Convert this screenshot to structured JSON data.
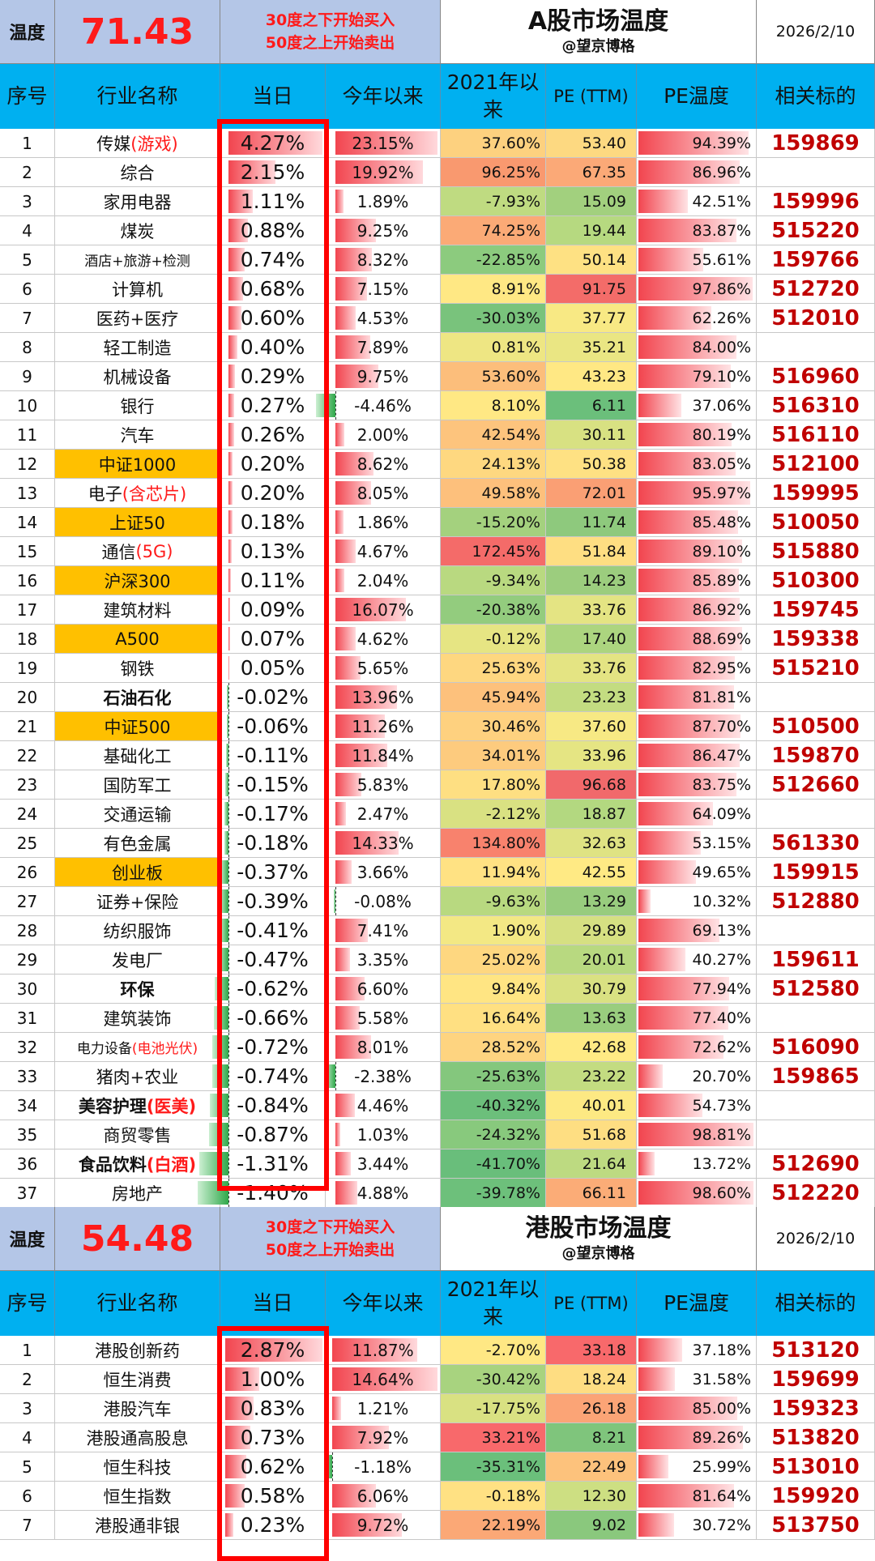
{
  "a_share": {
    "temp_label": "温度",
    "temp_value": "71.43",
    "rule_line1": "30度之下开始买入",
    "rule_line2": "50度之上开始卖出",
    "title": "A股市场温度",
    "author": "@望京博格",
    "date": "2026/2/10",
    "columns": [
      "序号",
      "行业名称",
      "当日",
      "今年以来",
      "2021年以来",
      "PE (TTM)",
      "PE温度",
      "相关标的"
    ],
    "rows": [
      {
        "idx": "1",
        "name": "传媒",
        "note": "(游戏)",
        "day": "4.27%",
        "ytd": "23.15%",
        "since": "37.60%",
        "pe": "53.40",
        "temp": "94.39%",
        "code": "159869",
        "since_color": "#fdd17f",
        "pe_color": "#fdd981"
      },
      {
        "idx": "2",
        "name": "综合",
        "note": "",
        "day": "2.15%",
        "ytd": "19.92%",
        "since": "96.25%",
        "pe": "67.35",
        "temp": "86.96%",
        "code": "",
        "since_color": "#f9996f",
        "pe_color": "#fba977"
      },
      {
        "idx": "3",
        "name": "家用电器",
        "note": "",
        "day": "1.11%",
        "ytd": "1.89%",
        "since": "-7.93%",
        "pe": "15.09",
        "temp": "42.51%",
        "code": "159996",
        "since_color": "#bfdb81",
        "pe_color": "#a2d07e"
      },
      {
        "idx": "4",
        "name": "煤炭",
        "note": "",
        "day": "0.88%",
        "ytd": "9.25%",
        "since": "74.25%",
        "pe": "19.44",
        "temp": "83.87%",
        "code": "515220",
        "since_color": "#fbaa76",
        "pe_color": "#b6d980"
      },
      {
        "idx": "5",
        "name": "酒店+旅游+检测",
        "note": "",
        "day": "0.74%",
        "ytd": "8.32%",
        "since": "-22.85%",
        "pe": "50.14",
        "temp": "55.61%",
        "code": "159766",
        "since_color": "#8ccb7e",
        "pe_color": "#fee183"
      },
      {
        "idx": "6",
        "name": "计算机",
        "note": "",
        "day": "0.68%",
        "ytd": "7.15%",
        "since": "8.91%",
        "pe": "91.75",
        "temp": "97.86%",
        "code": "512720",
        "since_color": "#ffe884",
        "pe_color": "#f36c69"
      },
      {
        "idx": "7",
        "name": "医药+医疗",
        "note": "",
        "day": "0.60%",
        "ytd": "4.53%",
        "since": "-30.03%",
        "pe": "37.77",
        "temp": "62.26%",
        "code": "512010",
        "since_color": "#79c37c",
        "pe_color": "#f8e984"
      },
      {
        "idx": "8",
        "name": "轻工制造",
        "note": "",
        "day": "0.40%",
        "ytd": "7.89%",
        "since": "0.81%",
        "pe": "35.21",
        "temp": "84.00%",
        "code": "",
        "since_color": "#eee683",
        "pe_color": "#eae683"
      },
      {
        "idx": "9",
        "name": "机械设备",
        "note": "",
        "day": "0.29%",
        "ytd": "9.75%",
        "since": "53.60%",
        "pe": "43.23",
        "temp": "79.10%",
        "code": "516960",
        "since_color": "#fcbe7b",
        "pe_color": "#ffe884"
      },
      {
        "idx": "10",
        "name": "银行",
        "note": "",
        "day": "0.27%",
        "ytd": "-4.46%",
        "since": "8.10%",
        "pe": "6.11",
        "temp": "37.06%",
        "code": "516310",
        "since_color": "#ffe884",
        "pe_color": "#6bbf7b"
      },
      {
        "idx": "11",
        "name": "汽车",
        "note": "",
        "day": "0.26%",
        "ytd": "2.00%",
        "since": "42.54%",
        "pe": "30.11",
        "temp": "80.19%",
        "code": "516110",
        "since_color": "#fdc47d",
        "pe_color": "#d8e182"
      },
      {
        "idx": "12",
        "name": "中证1000",
        "note": "",
        "day": "0.20%",
        "ytd": "8.62%",
        "since": "24.13%",
        "pe": "50.38",
        "temp": "83.05%",
        "code": "512100",
        "since_color": "#fed880",
        "pe_color": "#fee183"
      },
      {
        "idx": "13",
        "name": "电子",
        "note": "(含芯片)",
        "day": "0.20%",
        "ytd": "8.05%",
        "since": "49.58%",
        "pe": "72.01",
        "temp": "95.97%",
        "code": "159995",
        "since_color": "#fdc07c",
        "pe_color": "#fa9f74"
      },
      {
        "idx": "14",
        "name": "上证50",
        "note": "",
        "day": "0.18%",
        "ytd": "1.86%",
        "since": "-15.20%",
        "pe": "11.74",
        "temp": "85.48%",
        "code": "510050",
        "since_color": "#a4d17e",
        "pe_color": "#8ec97d"
      },
      {
        "idx": "15",
        "name": "通信",
        "note": "(5G)",
        "day": "0.13%",
        "ytd": "4.67%",
        "since": "172.45%",
        "pe": "51.84",
        "temp": "89.10%",
        "code": "515880",
        "since_color": "#f46b69",
        "pe_color": "#fede82"
      },
      {
        "idx": "16",
        "name": "沪深300",
        "note": "",
        "day": "0.11%",
        "ytd": "2.04%",
        "since": "-9.34%",
        "pe": "14.23",
        "temp": "85.89%",
        "code": "510300",
        "since_color": "#b9d980",
        "pe_color": "#9ccd7e"
      },
      {
        "idx": "17",
        "name": "建筑材料",
        "note": "",
        "day": "0.09%",
        "ytd": "16.07%",
        "since": "-20.38%",
        "pe": "33.76",
        "temp": "86.92%",
        "code": "159745",
        "since_color": "#93cc7e",
        "pe_color": "#e4e483"
      },
      {
        "idx": "18",
        "name": "A500",
        "note": "",
        "day": "0.07%",
        "ytd": "4.62%",
        "since": "-0.12%",
        "pe": "17.40",
        "temp": "88.69%",
        "code": "159338",
        "since_color": "#e6e583",
        "pe_color": "#acd57f"
      },
      {
        "idx": "19",
        "name": "钢铁",
        "note": "",
        "day": "0.05%",
        "ytd": "5.65%",
        "since": "25.63%",
        "pe": "33.76",
        "temp": "82.95%",
        "code": "515210",
        "since_color": "#fed780",
        "pe_color": "#e4e483"
      },
      {
        "idx": "20",
        "name": "石油石化",
        "note": "",
        "day": "-0.02%",
        "ytd": "13.96%",
        "since": "45.94%",
        "pe": "23.23",
        "temp": "81.81%",
        "code": "",
        "since_color": "#fdc17c",
        "pe_color": "#c3dc81"
      },
      {
        "idx": "21",
        "name": "中证500",
        "note": "",
        "day": "-0.06%",
        "ytd": "11.26%",
        "since": "30.46%",
        "pe": "37.60",
        "temp": "87.70%",
        "code": "510500",
        "since_color": "#fed17f",
        "pe_color": "#f7e984"
      },
      {
        "idx": "22",
        "name": "基础化工",
        "note": "",
        "day": "-0.11%",
        "ytd": "11.84%",
        "since": "34.01%",
        "pe": "33.96",
        "temp": "86.47%",
        "code": "159870",
        "since_color": "#fdcb7e",
        "pe_color": "#e5e583"
      },
      {
        "idx": "23",
        "name": "国防军工",
        "note": "",
        "day": "-0.15%",
        "ytd": "5.83%",
        "since": "17.80%",
        "pe": "96.68",
        "temp": "83.75%",
        "code": "512660",
        "since_color": "#fedf82",
        "pe_color": "#f1696b"
      },
      {
        "idx": "24",
        "name": "交通运输",
        "note": "",
        "day": "-0.17%",
        "ytd": "2.47%",
        "since": "-2.12%",
        "pe": "18.87",
        "temp": "64.09%",
        "code": "",
        "since_color": "#d9e182",
        "pe_color": "#b3d880"
      },
      {
        "idx": "25",
        "name": "有色金属",
        "note": "",
        "day": "-0.18%",
        "ytd": "14.33%",
        "since": "134.80%",
        "pe": "32.63",
        "temp": "53.15%",
        "code": "561330",
        "since_color": "#f8826d",
        "pe_color": "#dfe383"
      },
      {
        "idx": "26",
        "name": "创业板",
        "note": "",
        "day": "-0.37%",
        "ytd": "3.66%",
        "since": "11.94%",
        "pe": "42.55",
        "temp": "49.65%",
        "code": "159915",
        "since_color": "#ffe283",
        "pe_color": "#ffea84"
      },
      {
        "idx": "27",
        "name": "证券+保险",
        "note": "",
        "day": "-0.39%",
        "ytd": "-0.08%",
        "since": "-9.63%",
        "pe": "13.29",
        "temp": "10.32%",
        "code": "512880",
        "since_color": "#b8d980",
        "pe_color": "#98cc7e"
      },
      {
        "idx": "28",
        "name": "纺织服饰",
        "note": "",
        "day": "-0.41%",
        "ytd": "7.41%",
        "since": "1.90%",
        "pe": "29.89",
        "temp": "69.13%",
        "code": "",
        "since_color": "#f3e884",
        "pe_color": "#d6e082"
      },
      {
        "idx": "29",
        "name": "发电厂",
        "note": "",
        "day": "-0.47%",
        "ytd": "3.35%",
        "since": "25.02%",
        "pe": "20.01",
        "temp": "40.27%",
        "code": "159611",
        "since_color": "#fed780",
        "pe_color": "#b8d980"
      },
      {
        "idx": "30",
        "name": "环保",
        "note": "",
        "day": "-0.62%",
        "ytd": "6.60%",
        "since": "9.84%",
        "pe": "30.79",
        "temp": "77.94%",
        "code": "512580",
        "since_color": "#ffe583",
        "pe_color": "#d9e182"
      },
      {
        "idx": "31",
        "name": "建筑装饰",
        "note": "",
        "day": "-0.66%",
        "ytd": "5.58%",
        "since": "16.64%",
        "pe": "13.63",
        "temp": "77.40%",
        "code": "",
        "since_color": "#ffe082",
        "pe_color": "#99cd7e"
      },
      {
        "idx": "32",
        "name": "电力设备",
        "note": "(电池光伏)",
        "day": "-0.72%",
        "ytd": "8.01%",
        "since": "28.52%",
        "pe": "42.68",
        "temp": "72.62%",
        "code": "516090",
        "since_color": "#fed480",
        "pe_color": "#ffea84"
      },
      {
        "idx": "33",
        "name": "猪肉+农业",
        "note": "",
        "day": "-0.74%",
        "ytd": "-2.38%",
        "since": "-25.63%",
        "pe": "23.22",
        "temp": "20.70%",
        "code": "159865",
        "since_color": "#84c77d",
        "pe_color": "#c3dc81"
      },
      {
        "idx": "34",
        "name": "美容护理",
        "note": "(医美)",
        "day": "-0.84%",
        "ytd": "4.46%",
        "since": "-40.32%",
        "pe": "40.01",
        "temp": "54.73%",
        "code": "",
        "since_color": "#6cbf7b",
        "pe_color": "#fde983"
      },
      {
        "idx": "35",
        "name": "商贸零售",
        "note": "",
        "day": "-0.87%",
        "ytd": "1.03%",
        "since": "-24.32%",
        "pe": "51.68",
        "temp": "98.81%",
        "code": "",
        "since_color": "#88c97d",
        "pe_color": "#fede82"
      },
      {
        "idx": "36",
        "name": "食品饮料",
        "note": "(白酒)",
        "day": "-1.31%",
        "ytd": "3.44%",
        "since": "-41.70%",
        "pe": "21.64",
        "temp": "13.72%",
        "code": "512690",
        "since_color": "#69be7b",
        "pe_color": "#bdda81"
      },
      {
        "idx": "37",
        "name": "房地产",
        "note": "",
        "day": "-1.40%",
        "ytd": "4.88%",
        "since": "-39.78%",
        "pe": "66.11",
        "temp": "98.60%",
        "code": "512220",
        "since_color": "#6dc07b",
        "pe_color": "#fbac77"
      }
    ]
  },
  "hk_share": {
    "temp_label": "温度",
    "temp_value": "54.48",
    "rule_line1": "30度之下开始买入",
    "rule_line2": "50度之上开始卖出",
    "title": "港股市场温度",
    "author": "@望京博格",
    "date": "2026/2/10",
    "columns": [
      "序号",
      "行业名称",
      "当日",
      "今年以来",
      "2021年以来",
      "PE (TTM)",
      "PE温度",
      "相关标的"
    ],
    "rows": [
      {
        "idx": "1",
        "name": "港股创新药",
        "note": "",
        "day": "2.87%",
        "ytd": "11.87%",
        "since": "-2.70%",
        "pe": "33.18",
        "temp": "37.18%",
        "code": "513120",
        "since_color": "#ffe884",
        "pe_color": "#f8696b"
      },
      {
        "idx": "2",
        "name": "恒生消费",
        "note": "",
        "day": "1.00%",
        "ytd": "14.64%",
        "since": "-30.42%",
        "pe": "18.24",
        "temp": "31.58%",
        "code": "159699",
        "since_color": "#a8d37f",
        "pe_color": "#fedd82"
      },
      {
        "idx": "3",
        "name": "港股汽车",
        "note": "",
        "day": "0.83%",
        "ytd": "1.21%",
        "since": "-17.75%",
        "pe": "26.18",
        "temp": "85.00%",
        "code": "159323",
        "since_color": "#d9e182",
        "pe_color": "#fba476"
      },
      {
        "idx": "4",
        "name": "港股通高股息",
        "note": "",
        "day": "0.73%",
        "ytd": "7.92%",
        "since": "33.21%",
        "pe": "8.21",
        "temp": "89.26%",
        "code": "513820",
        "since_color": "#f8696b",
        "pe_color": "#7fc57c"
      },
      {
        "idx": "5",
        "name": "恒生科技",
        "note": "",
        "day": "0.62%",
        "ytd": "-1.18%",
        "since": "-35.31%",
        "pe": "22.49",
        "temp": "25.99%",
        "code": "513010",
        "since_color": "#6bbf7b",
        "pe_color": "#fdc27c"
      },
      {
        "idx": "6",
        "name": "恒生指数",
        "note": "",
        "day": "0.58%",
        "ytd": "6.06%",
        "since": "-0.18%",
        "pe": "12.30",
        "temp": "81.64%",
        "code": "159920",
        "since_color": "#ffe183",
        "pe_color": "#cddf82"
      },
      {
        "idx": "7",
        "name": "港股通非银",
        "note": "",
        "day": "0.23%",
        "ytd": "9.72%",
        "since": "22.19%",
        "pe": "9.02",
        "temp": "30.72%",
        "code": "513750",
        "since_color": "#fba876",
        "pe_color": "#8ac87d"
      }
    ]
  }
}
